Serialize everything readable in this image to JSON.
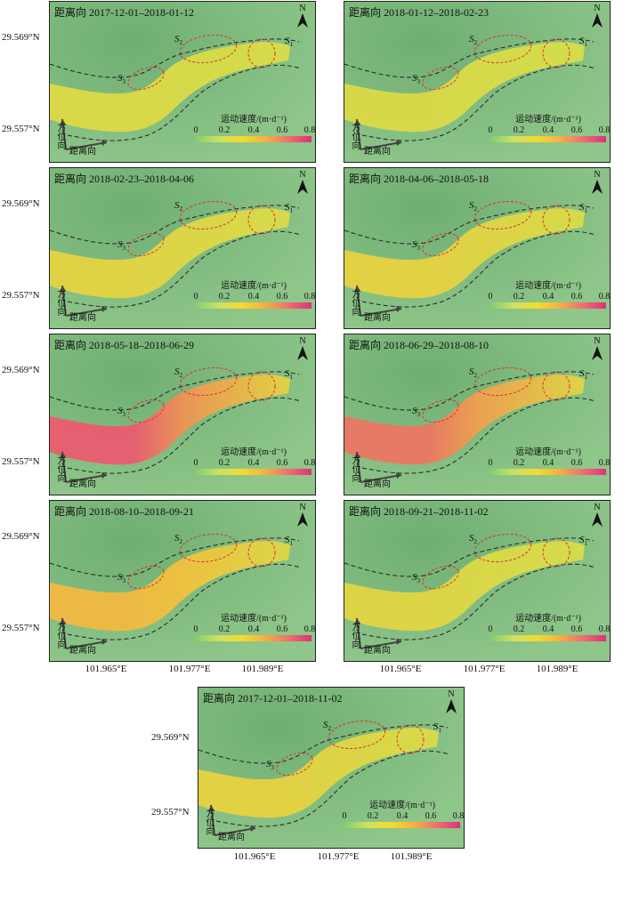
{
  "legend": {
    "title": "运动速度/(m·d⁻¹)",
    "ticks": [
      "0",
      "0.2",
      "0.4",
      "0.6",
      "0.8"
    ]
  },
  "labels": {
    "north": "N",
    "s1": "S",
    "s2": "S",
    "s3": "S",
    "s1_sub": "1",
    "s2_sub": "2",
    "s3_sub": "3",
    "range_dir": "距离向",
    "azimuth_dir": "方位向"
  },
  "axes": {
    "lat_top": "29.569°N",
    "lat_bottom": "29.557°N",
    "lon_1": "101.965°E",
    "lon_2": "101.977°E",
    "lon_3": "101.989°E"
  },
  "panels": [
    {
      "title": "距离向 2017-12-01–2018-01-12",
      "intensity": 0.15
    },
    {
      "title": "距离向 2018-01-12–2018-02-23",
      "intensity": 0.12
    },
    {
      "title": "距离向 2018-02-23–2018-04-06",
      "intensity": 0.25
    },
    {
      "title": "距离向 2018-04-06–2018-05-18",
      "intensity": 0.3
    },
    {
      "title": "距离向 2018-05-18–2018-06-29",
      "intensity": 0.9
    },
    {
      "title": "距离向 2018-06-29–2018-08-10",
      "intensity": 0.8
    },
    {
      "title": "距离向 2018-08-10–2018-09-21",
      "intensity": 0.55
    },
    {
      "title": "距离向 2018-09-21–2018-11-02",
      "intensity": 0.2
    },
    {
      "title": "距离向 2017-12-01–2018-11-02",
      "intensity": 0.3
    }
  ],
  "colors": {
    "background_green": "#8fc68a",
    "low": "#d4e04a",
    "mid": "#f3c83a",
    "high": "#e8407e",
    "dashed_boundary": "#222222",
    "region_outline": "#e03030"
  }
}
